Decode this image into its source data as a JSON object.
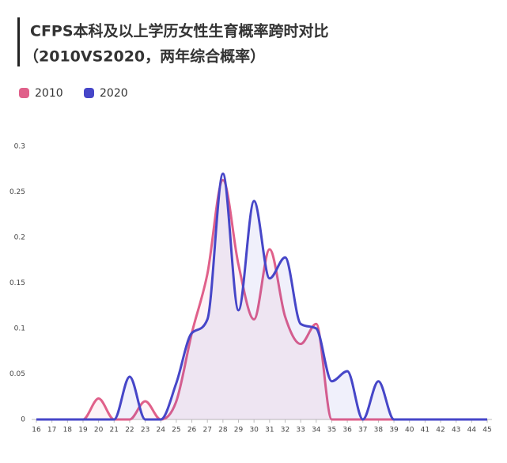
{
  "chart_data": {
    "type": "line",
    "title": "CFPS本科及以上学历女性生育概率跨时对比",
    "subtitle": "（2010VS2020，两年综合概率）",
    "x": [
      16,
      17,
      18,
      19,
      20,
      21,
      22,
      23,
      24,
      25,
      26,
      27,
      28,
      29,
      30,
      31,
      32,
      33,
      34,
      35,
      36,
      37,
      38,
      39,
      40,
      41,
      42,
      43,
      44,
      45
    ],
    "series": [
      {
        "name": "2010",
        "color": "#e0608a",
        "values": [
          0,
          0,
          0,
          0,
          0.023,
          0,
          0,
          0.02,
          0,
          0.02,
          0.095,
          0.16,
          0.263,
          0.17,
          0.11,
          0.187,
          0.113,
          0.083,
          0.105,
          0,
          0,
          0,
          0,
          0,
          0,
          0,
          0,
          0,
          0,
          0
        ]
      },
      {
        "name": "2020",
        "color": "#4646c8",
        "values": [
          0,
          0,
          0,
          0,
          0,
          0,
          0.047,
          0,
          0,
          0.04,
          0.095,
          0.11,
          0.27,
          0.12,
          0.24,
          0.155,
          0.178,
          0.105,
          0.1,
          0.042,
          0.053,
          0,
          0.042,
          0,
          0,
          0,
          0,
          0,
          0,
          0
        ]
      }
    ],
    "xlim": [
      16,
      45
    ],
    "xticks": [
      16,
      17,
      18,
      19,
      20,
      21,
      22,
      23,
      24,
      25,
      26,
      27,
      28,
      29,
      30,
      31,
      32,
      33,
      34,
      35,
      36,
      37,
      38,
      39,
      40,
      41,
      42,
      43,
      44,
      45
    ],
    "ylim": [
      0,
      0.3
    ],
    "yticks": [
      0,
      0.05,
      0.1,
      0.15,
      0.2,
      0.25,
      0.3
    ],
    "grid": false
  }
}
